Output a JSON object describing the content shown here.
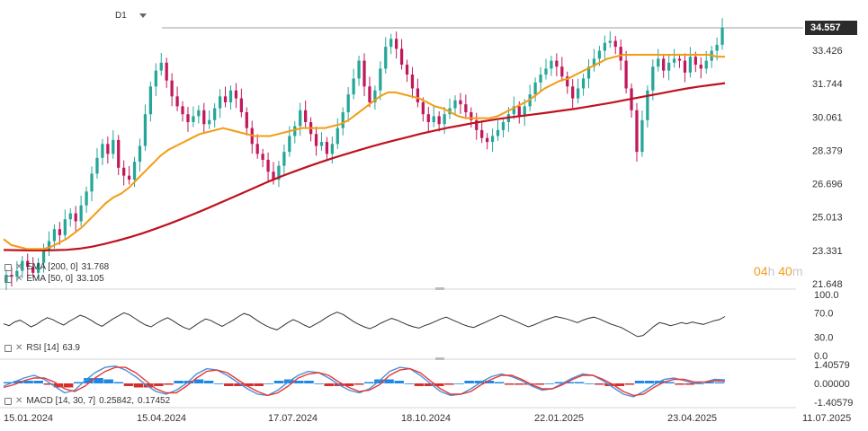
{
  "header": {
    "timeframe": "D1"
  },
  "price_tag": "34.557",
  "countdown": {
    "hours": "04",
    "hours_unit": "h",
    "minutes": "40",
    "minutes_unit": "m"
  },
  "legends": {
    "ema200": {
      "label": "EMA [200, 0]",
      "value": "31.768"
    },
    "ema50": {
      "label": "EMA [50, 0]",
      "value": "33.105"
    },
    "rsi": {
      "label": "RSI [14]",
      "value": "63.9"
    },
    "macd": {
      "label": "MACD [14, 30, 7]",
      "value1": "0.25842,",
      "value2": "0.17452"
    }
  },
  "colors": {
    "bull": "#26a69a",
    "bear": "#c2185b",
    "ema50": "#f39c12",
    "ema200": "#c0111f",
    "rsi": "#333333",
    "macd_line": "#4a90d9",
    "signal_line": "#e53935",
    "hist_pos": "#1e88e5",
    "hist_neg": "#d32f2f"
  },
  "chart_data": [
    {
      "type": "candlestick",
      "title": "",
      "y_ticks": [
        "34.557",
        "33.426",
        "31.744",
        "30.061",
        "28.379",
        "26.696",
        "25.013",
        "23.331",
        "21.648"
      ],
      "ylim": [
        21.648,
        34.557
      ],
      "x_ticks": [
        "15.01.2024",
        "15.04.2024",
        "17.07.2024",
        "18.10.2024",
        "22.01.2025",
        "23.04.2025",
        "11.07.2025"
      ],
      "grid": false,
      "close": [
        22.1,
        22.0,
        22.3,
        22.8,
        22.5,
        22.2,
        22.7,
        23.3,
        23.8,
        24.4,
        24.1,
        24.9,
        25.2,
        24.8,
        25.6,
        26.3,
        27.2,
        28.0,
        28.7,
        28.2,
        28.9,
        27.5,
        27.1,
        26.9,
        27.8,
        28.6,
        30.2,
        31.6,
        32.4,
        32.8,
        31.9,
        31.1,
        30.6,
        30.2,
        29.8,
        30.1,
        30.4,
        29.7,
        29.9,
        30.5,
        31.1,
        30.8,
        31.4,
        31.0,
        30.3,
        29.5,
        28.7,
        28.2,
        27.9,
        27.3,
        26.9,
        27.6,
        28.3,
        29.1,
        29.6,
        30.4,
        29.8,
        29.2,
        28.6,
        28.8,
        28.2,
        28.7,
        29.5,
        30.3,
        31.2,
        32.0,
        32.9,
        31.6,
        30.8,
        31.4,
        32.5,
        33.6,
        34.0,
        33.5,
        32.7,
        32.2,
        31.5,
        30.8,
        30.2,
        29.8,
        30.1,
        29.7,
        30.2,
        30.5,
        30.9,
        30.7,
        30.3,
        29.9,
        29.4,
        29.0,
        28.8,
        29.1,
        29.4,
        29.8,
        30.2,
        30.6,
        30.1,
        30.6,
        31.2,
        31.8,
        32.2,
        32.5,
        32.9,
        32.6,
        32.1,
        31.6,
        31.0,
        31.5,
        32.0,
        32.6,
        33.0,
        33.4,
        33.8,
        33.9,
        33.6,
        32.9,
        31.5,
        30.4,
        28.3,
        29.9,
        31.4,
        32.6,
        33.0,
        32.4,
        32.8,
        33.0,
        32.9,
        32.3,
        33.1,
        32.7,
        32.5,
        32.9,
        33.4,
        33.7,
        34.557
      ],
      "ema50": [
        23.9,
        23.6,
        23.5,
        23.4,
        23.4,
        23.4,
        23.5,
        23.7,
        23.9,
        24.2,
        24.5,
        24.9,
        25.3,
        25.7,
        26.0,
        26.2,
        26.5,
        26.9,
        27.3,
        27.7,
        28.1,
        28.4,
        28.6,
        28.8,
        29.0,
        29.2,
        29.3,
        29.4,
        29.5,
        29.4,
        29.3,
        29.2,
        29.1,
        29.1,
        29.1,
        29.2,
        29.3,
        29.4,
        29.5,
        29.5,
        29.5,
        29.5,
        29.6,
        29.7,
        29.9,
        30.2,
        30.5,
        30.8,
        31.1,
        31.3,
        31.3,
        31.2,
        31.1,
        31.0,
        30.8,
        30.6,
        30.5,
        30.3,
        30.1,
        30.0,
        30.0,
        30.0,
        30.0,
        30.1,
        30.3,
        30.5,
        30.7,
        30.9,
        31.2,
        31.5,
        31.7,
        31.9,
        32.0,
        32.2,
        32.4,
        32.6,
        32.8,
        33.0,
        33.1,
        33.2,
        33.2,
        33.2,
        33.2,
        33.2,
        33.2,
        33.2,
        33.2,
        33.2,
        33.2,
        33.2,
        33.2,
        33.1,
        33.105
      ],
      "ema200": [
        23.35,
        23.34,
        23.33,
        23.33,
        23.34,
        23.36,
        23.42,
        23.52,
        23.66,
        23.82,
        24.0,
        24.2,
        24.42,
        24.65,
        24.9,
        25.16,
        25.42,
        25.7,
        25.98,
        26.26,
        26.54,
        26.82,
        27.08,
        27.32,
        27.55,
        27.77,
        27.98,
        28.18,
        28.37,
        28.56,
        28.73,
        28.9,
        29.06,
        29.22,
        29.36,
        29.5,
        29.62,
        29.74,
        29.85,
        29.95,
        30.04,
        30.12,
        30.2,
        30.28,
        30.37,
        30.46,
        30.56,
        30.67,
        30.78,
        30.9,
        31.02,
        31.14,
        31.26,
        31.38,
        31.5,
        31.6,
        31.68,
        31.768
      ]
    },
    {
      "type": "line",
      "title": "",
      "series": [
        {
          "name": "RSI",
          "values": [
            52,
            49,
            55,
            58,
            53,
            47,
            51,
            57,
            62,
            59,
            54,
            50,
            56,
            61,
            66,
            63,
            58,
            52,
            48,
            54,
            60,
            65,
            70,
            67,
            61,
            55,
            50,
            47,
            53,
            58,
            62,
            57,
            51,
            46,
            43,
            49,
            55,
            60,
            57,
            52,
            48,
            53,
            58,
            64,
            69,
            66,
            60,
            54,
            49,
            45,
            42,
            48,
            54,
            59,
            55,
            50,
            46,
            51,
            56,
            62,
            67,
            71,
            68,
            62,
            56,
            51,
            47,
            44,
            48,
            53,
            57,
            61,
            58,
            54,
            50,
            47,
            45,
            49,
            52,
            56,
            60,
            63,
            59,
            55,
            51,
            48,
            46,
            50,
            54,
            58,
            62,
            66,
            63,
            59,
            55,
            51,
            47,
            50,
            54,
            58,
            61,
            64,
            62,
            60,
            57,
            54,
            58,
            61,
            63,
            60,
            56,
            52,
            49,
            46,
            41,
            36,
            31,
            33,
            40,
            48,
            54,
            52,
            49,
            51,
            54,
            52,
            55,
            53,
            51,
            54,
            57,
            59,
            63.9
          ]
        }
      ],
      "y_ticks": [
        "100.0",
        "70.0",
        "30.0",
        "0.0"
      ],
      "ylim": [
        0,
        100
      ]
    },
    {
      "type": "line",
      "title": "",
      "series": [
        {
          "name": "MACD",
          "values": [
            -0.2,
            0.1,
            0.4,
            0.6,
            0.3,
            -0.2,
            -0.7,
            -0.5,
            0.2,
            0.8,
            1.2,
            1.3,
            1.0,
            0.5,
            -0.1,
            -0.6,
            -0.8,
            -0.5,
            0.0,
            0.7,
            1.1,
            1.0,
            0.6,
            0.1,
            -0.4,
            -0.8,
            -0.9,
            -0.5,
            0.1,
            0.6,
            0.9,
            0.8,
            0.4,
            -0.1,
            -0.5,
            -0.7,
            -0.4,
            0.2,
            0.9,
            1.2,
            1.1,
            0.6,
            0.0,
            -0.6,
            -0.9,
            -0.8,
            -0.4,
            0.1,
            0.5,
            0.7,
            0.5,
            0.2,
            -0.2,
            -0.5,
            -0.4,
            0.0,
            0.4,
            0.7,
            0.6,
            0.2,
            -0.3,
            -0.8,
            -1.0,
            -0.6,
            -0.1,
            0.3,
            0.4,
            0.2,
            0.0,
            0.1,
            0.3,
            0.25842
          ]
        },
        {
          "name": "Signal",
          "values": [
            -0.3,
            -0.1,
            0.2,
            0.4,
            0.4,
            0.1,
            -0.4,
            -0.6,
            -0.2,
            0.4,
            0.9,
            1.2,
            1.2,
            0.8,
            0.2,
            -0.4,
            -0.7,
            -0.7,
            -0.2,
            0.4,
            0.9,
            1.0,
            0.8,
            0.3,
            -0.2,
            -0.6,
            -0.9,
            -0.7,
            -0.2,
            0.4,
            0.7,
            0.8,
            0.6,
            0.1,
            -0.3,
            -0.6,
            -0.5,
            -0.1,
            0.6,
            1.0,
            1.1,
            0.8,
            0.2,
            -0.4,
            -0.8,
            -0.8,
            -0.6,
            -0.1,
            0.3,
            0.6,
            0.6,
            0.3,
            -0.1,
            -0.4,
            -0.4,
            -0.1,
            0.3,
            0.6,
            0.6,
            0.3,
            -0.1,
            -0.6,
            -0.9,
            -0.8,
            -0.3,
            0.1,
            0.3,
            0.3,
            0.1,
            0.1,
            0.2,
            0.17452
          ]
        }
      ],
      "y_ticks": [
        "1.40579",
        "0.00000",
        "-1.40579"
      ],
      "ylim": [
        -1.40579,
        1.40579
      ]
    }
  ]
}
